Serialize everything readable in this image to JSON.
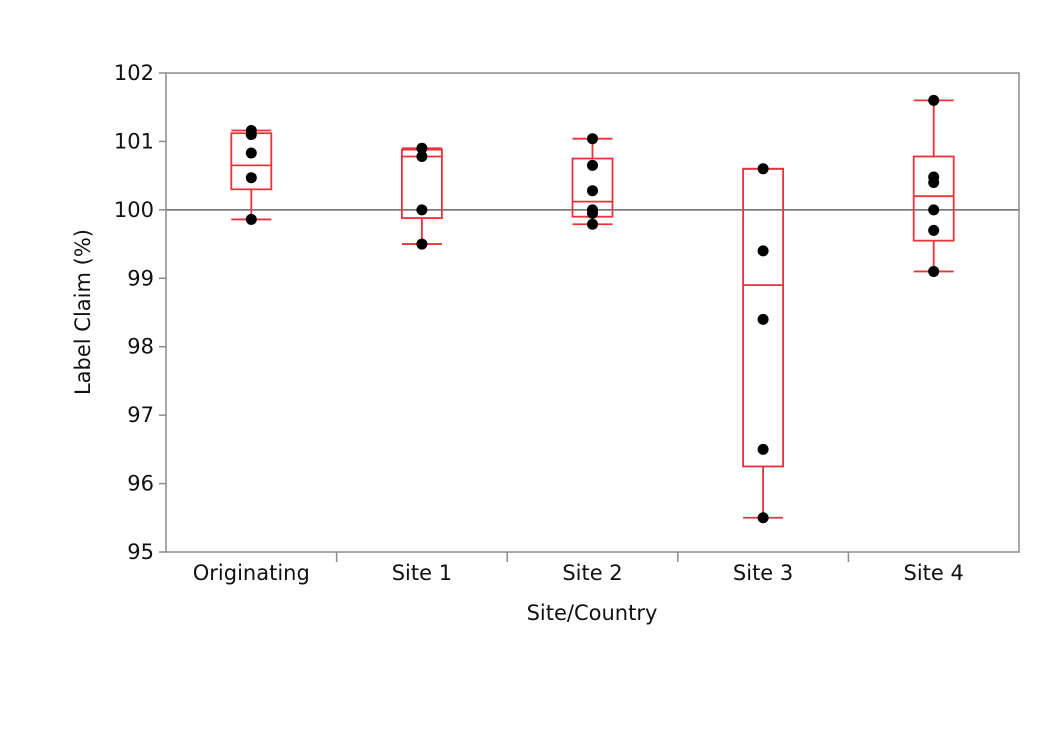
{
  "chart_data": {
    "type": "box",
    "title": "",
    "xlabel": "Site/Country",
    "ylabel": "Label Claim (%)",
    "ylim": [
      95,
      102
    ],
    "yticks": [
      95,
      96,
      97,
      98,
      99,
      100,
      101,
      102
    ],
    "reference_line": 100,
    "grid": false,
    "categories": [
      "Originating",
      "Site 1",
      "Site 2",
      "Site 3",
      "Site 4"
    ],
    "boxes": [
      {
        "category": "Originating",
        "whisker_low": 99.86,
        "q1": 100.3,
        "median": 100.65,
        "q3": 101.12,
        "whisker_high": 101.16
      },
      {
        "category": "Site 1",
        "whisker_low": 99.5,
        "q1": 99.88,
        "median": 100.78,
        "q3": 100.88,
        "whisker_high": 100.9
      },
      {
        "category": "Site 2",
        "whisker_low": 99.79,
        "q1": 99.9,
        "median": 100.12,
        "q3": 100.75,
        "whisker_high": 101.04
      },
      {
        "category": "Site 3",
        "whisker_low": 95.5,
        "q1": 96.25,
        "median": 98.9,
        "q3": 100.6,
        "whisker_high": 100.6
      },
      {
        "category": "Site 4",
        "whisker_low": 99.1,
        "q1": 99.55,
        "median": 100.2,
        "q3": 100.78,
        "whisker_high": 101.6
      }
    ],
    "points": [
      {
        "category": "Originating",
        "values": [
          101.16,
          101.1,
          100.83,
          100.47,
          99.86
        ]
      },
      {
        "category": "Site 1",
        "values": [
          100.9,
          100.78,
          100.0,
          99.5
        ]
      },
      {
        "category": "Site 2",
        "values": [
          101.04,
          100.65,
          100.28,
          100.0,
          99.95,
          99.79
        ]
      },
      {
        "category": "Site 3",
        "values": [
          100.6,
          99.4,
          98.4,
          96.5,
          95.5
        ]
      },
      {
        "category": "Site 4",
        "values": [
          101.6,
          100.48,
          100.4,
          100.0,
          99.7,
          99.1
        ]
      }
    ],
    "colors": {
      "box": "#e8323c",
      "points": "#000000",
      "reference": "#666666",
      "frame": "#8c8c8c"
    }
  }
}
